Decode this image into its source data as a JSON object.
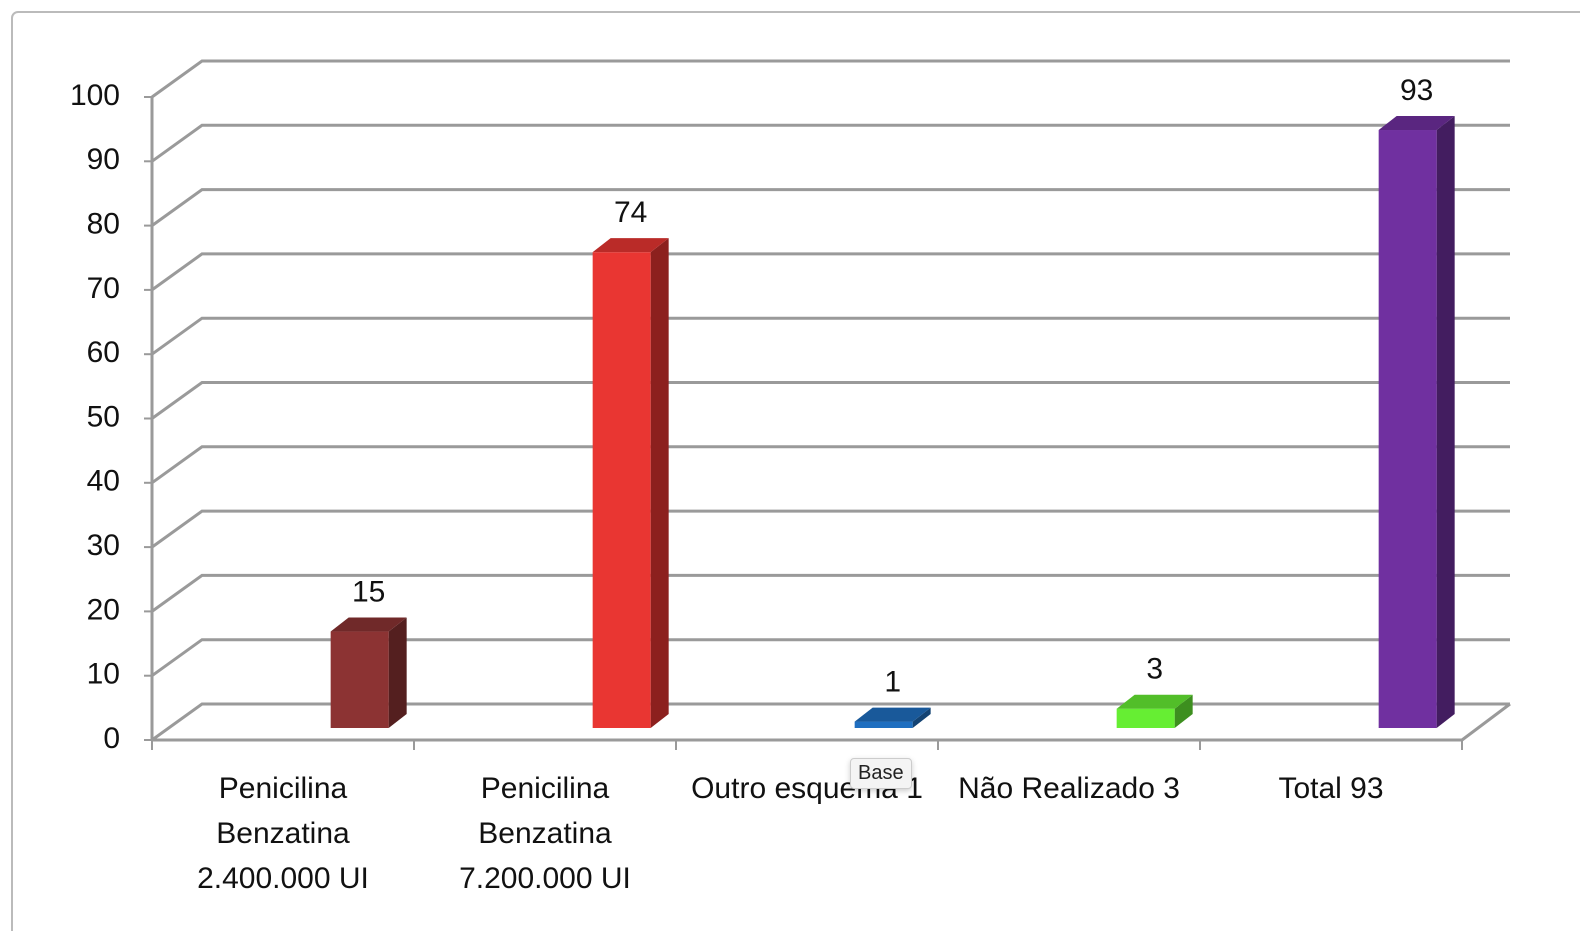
{
  "chart_data": {
    "type": "bar3d",
    "categories": [
      "Penicilina Benzatina 2.400.000 UI",
      "Penicilina Benzatina 7.200.000 UI",
      "Outro esquema 1",
      "Não Realizado 3",
      "Total 93"
    ],
    "values": [
      15,
      74,
      1,
      3,
      93
    ],
    "colors": [
      "#8c3333",
      "#e93632",
      "#1f6fc0",
      "#66ee33",
      "#7030a0"
    ],
    "ylim": [
      0,
      100
    ],
    "yticks": [
      0,
      10,
      20,
      30,
      40,
      50,
      60,
      70,
      80,
      90,
      100
    ],
    "grid": true,
    "data_labels": true,
    "tooltip": "Base"
  }
}
